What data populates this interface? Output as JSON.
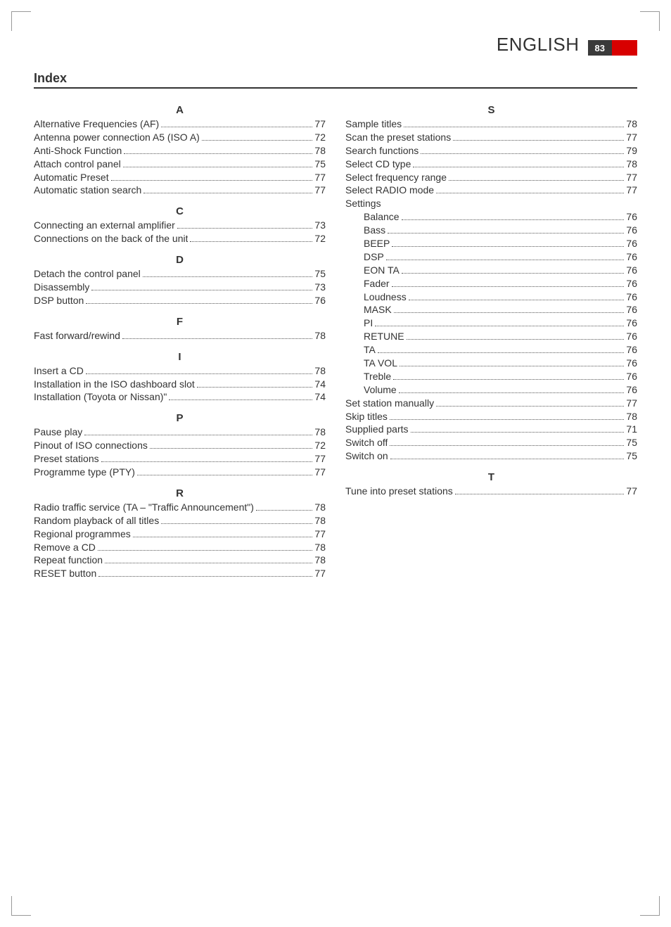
{
  "header": {
    "language": "ENGLISH",
    "page_number": "83"
  },
  "section_title": "Index",
  "columns": [
    {
      "groups": [
        {
          "letter": "A",
          "entries": [
            {
              "label": "Alternative Frequencies (AF)",
              "page": "77"
            },
            {
              "label": "Antenna power connection A5 (ISO A)",
              "page": "72"
            },
            {
              "label": "Anti-Shock Function",
              "page": "78"
            },
            {
              "label": "Attach control panel",
              "page": "75"
            },
            {
              "label": "Automatic Preset",
              "page": "77"
            },
            {
              "label": "Automatic station search",
              "page": "77"
            }
          ]
        },
        {
          "letter": "C",
          "entries": [
            {
              "label": "Connecting an external amplifier",
              "page": "73"
            },
            {
              "label": "Connections on the back of the unit",
              "page": "72"
            }
          ]
        },
        {
          "letter": "D",
          "entries": [
            {
              "label": "Detach the control panel",
              "page": "75"
            },
            {
              "label": "Disassembly",
              "page": "73"
            },
            {
              "label": "DSP button",
              "page": "76"
            }
          ]
        },
        {
          "letter": "F",
          "entries": [
            {
              "label": "Fast forward/rewind",
              "page": "78"
            }
          ]
        },
        {
          "letter": "I",
          "entries": [
            {
              "label": "Insert a CD",
              "page": "78"
            },
            {
              "label": "Installation in the ISO dashboard slot",
              "page": "74"
            },
            {
              "label": "Installation (Toyota or Nissan)\"",
              "page": "74"
            }
          ]
        },
        {
          "letter": "P",
          "entries": [
            {
              "label": "Pause play",
              "page": "78"
            },
            {
              "label": "Pinout of ISO connections",
              "page": "72"
            },
            {
              "label": "Preset stations",
              "page": "77"
            },
            {
              "label": "Programme type (PTY)",
              "page": "77"
            }
          ]
        },
        {
          "letter": "R",
          "entries": [
            {
              "label": "Radio traffic service (TA – \"Traffic Announcement\")",
              "page": "78"
            },
            {
              "label": "Random playback of all titles",
              "page": "78"
            },
            {
              "label": "Regional programmes",
              "page": "77"
            },
            {
              "label": "Remove a CD",
              "page": "78"
            },
            {
              "label": "Repeat function",
              "page": "78"
            },
            {
              "label": "RESET button",
              "page": "77"
            }
          ]
        }
      ]
    },
    {
      "groups": [
        {
          "letter": "S",
          "entries": [
            {
              "label": "Sample titles",
              "page": "78"
            },
            {
              "label": "Scan the preset stations",
              "page": "77"
            },
            {
              "label": "Search functions",
              "page": "79"
            },
            {
              "label": "Select CD type",
              "page": "78"
            },
            {
              "label": "Select frequency range",
              "page": "77"
            },
            {
              "label": "Select RADIO mode",
              "page": "77"
            },
            {
              "label": "Settings",
              "nopage": true
            },
            {
              "label": "Balance",
              "page": "76",
              "indent": true
            },
            {
              "label": "Bass",
              "page": "76",
              "indent": true
            },
            {
              "label": "BEEP",
              "page": "76",
              "indent": true
            },
            {
              "label": "DSP",
              "page": "76",
              "indent": true
            },
            {
              "label": "EON TA",
              "page": "76",
              "indent": true
            },
            {
              "label": "Fader",
              "page": "76",
              "indent": true
            },
            {
              "label": "Loudness",
              "page": "76",
              "indent": true
            },
            {
              "label": "MASK",
              "page": "76",
              "indent": true
            },
            {
              "label": "PI",
              "page": "76",
              "indent": true
            },
            {
              "label": "RETUNE",
              "page": "76",
              "indent": true
            },
            {
              "label": "TA",
              "page": "76",
              "indent": true
            },
            {
              "label": "TA VOL",
              "page": "76",
              "indent": true
            },
            {
              "label": "Treble",
              "page": "76",
              "indent": true
            },
            {
              "label": "Volume",
              "page": "76",
              "indent": true
            },
            {
              "label": "Set station manually",
              "page": "77"
            },
            {
              "label": "Skip titles",
              "page": "78"
            },
            {
              "label": "Supplied parts",
              "page": "71"
            },
            {
              "label": "Switch off",
              "page": "75"
            },
            {
              "label": "Switch on",
              "page": "75"
            }
          ]
        },
        {
          "letter": "T",
          "entries": [
            {
              "label": "Tune into preset stations",
              "page": "77"
            }
          ]
        }
      ]
    }
  ]
}
